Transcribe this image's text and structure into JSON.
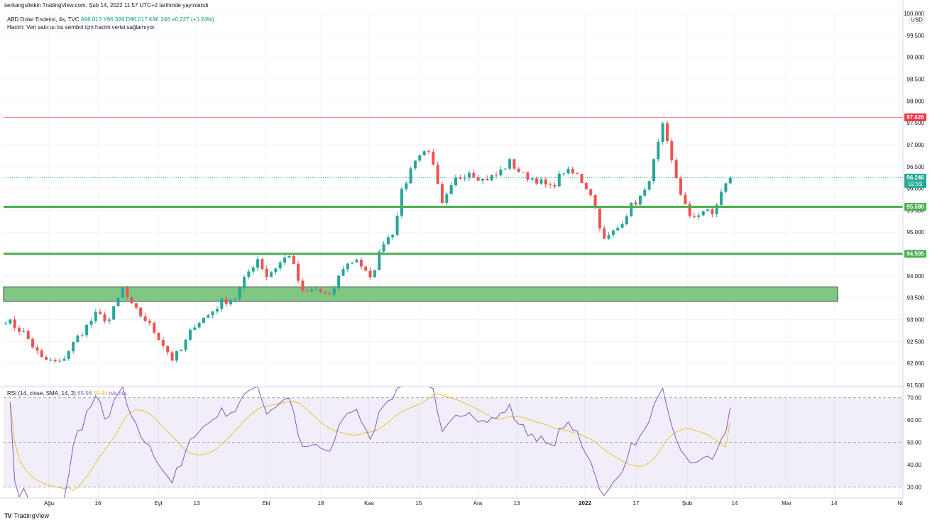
{
  "header": {
    "published": "serkangultekin TradingView.com, Şub 14, 2022 11:57 UTC+2 tarihinde yayınlandı",
    "symbol": "ABD Dolar Endeksi, 4s, TVC",
    "open": "A96.023",
    "high": "Y96.324",
    "low": "D96.017",
    "close": "K96.246",
    "change": "+0.227 (+0.24%)",
    "volume_note": "Hacim: Veri satıcısı bu sembol için hacim verisi sağlamıyor."
  },
  "rsi_legend": {
    "label": "RSI (14, close, SMA, 14, 2)",
    "value": "65.56",
    "sma_value": "59.44",
    "rest": "n/a n/a"
  },
  "price_axis": {
    "currency": "USD",
    "ticks": [
      "100.000",
      "99.500",
      "99.000",
      "98.500",
      "98.000",
      "97.500",
      "97.000",
      "96.500",
      "96.000",
      "95.500",
      "95.000",
      "94.500",
      "94.000",
      "93.500",
      "93.000",
      "92.500",
      "92.000",
      "91.500"
    ]
  },
  "rsi_axis": {
    "ticks": [
      "70.00",
      "60.00",
      "50.00",
      "40.00",
      "30.00"
    ]
  },
  "time_axis": {
    "labels": [
      "Ağu",
      "16",
      "Eyl",
      "13",
      "Eki",
      "18",
      "Kas",
      "15",
      "Ara",
      "13",
      "2022",
      "17",
      "Şub",
      "14",
      "Mar",
      "14",
      "Ni"
    ]
  },
  "price_tags": {
    "resistance": "97.626",
    "current": "96.246",
    "countdown": "02:59",
    "support1": "95.580",
    "support2": "94.505"
  },
  "colors": {
    "up": "#26a69a",
    "down": "#ef5350",
    "resistance": "#f23645",
    "support": "#4caf50",
    "zone": "#81c784",
    "rsi": "#7e57c2",
    "rsi_sma": "#e6c23b",
    "current": "#22ab94"
  },
  "chart_data": {
    "type": "candlestick",
    "title": "ABD Dolar Endeksi, 4s, TVC",
    "ylim": [
      91.5,
      100.0
    ],
    "horizontal_lines": [
      97.626,
      95.58,
      94.505
    ],
    "zone": [
      93.42,
      93.75
    ],
    "last_price": 96.246,
    "price_path": [
      [
        0,
        93.0
      ],
      [
        4,
        92.7
      ],
      [
        8,
        92.1
      ],
      [
        12,
        92.0
      ],
      [
        16,
        92.6
      ],
      [
        20,
        93.1
      ],
      [
        23,
        93.0
      ],
      [
        26,
        93.7
      ],
      [
        28,
        93.3
      ],
      [
        31,
        93.0
      ],
      [
        34,
        92.6
      ],
      [
        37,
        92.1
      ],
      [
        39,
        92.3
      ],
      [
        42,
        92.9
      ],
      [
        45,
        93.1
      ],
      [
        48,
        93.4
      ],
      [
        51,
        93.5
      ],
      [
        54,
        94.1
      ],
      [
        56,
        94.4
      ],
      [
        58,
        94.0
      ],
      [
        61,
        94.3
      ],
      [
        63,
        94.5
      ],
      [
        66,
        93.6
      ],
      [
        69,
        93.7
      ],
      [
        72,
        93.5
      ],
      [
        75,
        94.2
      ],
      [
        78,
        94.4
      ],
      [
        81,
        93.9
      ],
      [
        84,
        94.8
      ],
      [
        86,
        95.0
      ],
      [
        88,
        95.9
      ],
      [
        91,
        96.7
      ],
      [
        94,
        96.9
      ],
      [
        97,
        95.6
      ],
      [
        100,
        96.2
      ],
      [
        103,
        96.4
      ],
      [
        106,
        96.2
      ],
      [
        109,
        96.3
      ],
      [
        112,
        96.6
      ],
      [
        115,
        96.3
      ],
      [
        118,
        96.2
      ],
      [
        121,
        96.0
      ],
      [
        124,
        96.4
      ],
      [
        127,
        96.3
      ],
      [
        130,
        95.9
      ],
      [
        133,
        94.8
      ],
      [
        136,
        95.1
      ],
      [
        139,
        95.6
      ],
      [
        142,
        95.9
      ],
      [
        144,
        96.6
      ],
      [
        146,
        97.4
      ],
      [
        148,
        96.6
      ],
      [
        150,
        95.9
      ],
      [
        152,
        95.3
      ],
      [
        155,
        95.5
      ],
      [
        157,
        95.4
      ],
      [
        159,
        95.9
      ],
      [
        161,
        96.25
      ]
    ],
    "rsi_series": {
      "name": "RSI",
      "ylim": [
        25,
        75
      ],
      "levels": [
        70,
        50,
        30
      ],
      "last": 65.56,
      "sma_last": 59.44
    }
  }
}
